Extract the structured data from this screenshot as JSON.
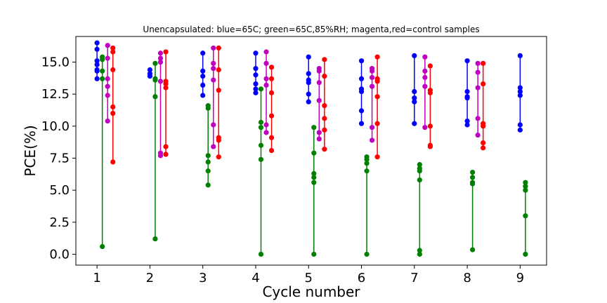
{
  "chart_data": {
    "type": "scatter",
    "title": "Unencapsulated: blue=65C; green=65C,85%RH; magenta,red=control samples",
    "xlabel": "Cycle number",
    "ylabel": "PCE(%)",
    "xlim": [
      0.6,
      9.5
    ],
    "ylim": [
      -0.85,
      17.0
    ],
    "x_ticks": [
      1,
      2,
      3,
      4,
      5,
      6,
      7,
      8,
      9
    ],
    "y_ticks": [
      0.0,
      2.5,
      5.0,
      7.5,
      10.0,
      12.5,
      15.0
    ],
    "y_tick_labels": [
      "0.0",
      "2.5",
      "5.0",
      "7.5",
      "10.0",
      "12.5",
      "15.0"
    ],
    "grid": false,
    "series": [
      {
        "color": "#0000ff",
        "offset": 0.0,
        "cycles": [
          {
            "x": 1,
            "values": [
              16.5,
              16.0,
              15.1,
              14.8,
              14.4,
              14.3,
              13.7
            ]
          },
          {
            "x": 2,
            "values": [
              14.4,
              14.1,
              13.9
            ]
          },
          {
            "x": 3,
            "values": [
              15.7,
              14.3,
              13.9,
              13.2,
              12.4
            ]
          },
          {
            "x": 4,
            "values": [
              15.7,
              14.5,
              14.0,
              13.3,
              12.9,
              12.6
            ]
          },
          {
            "x": 5,
            "values": [
              15.4,
              14.1,
              13.6,
              13.4,
              12.5,
              11.9
            ]
          },
          {
            "x": 6,
            "values": [
              15.1,
              13.7,
              12.9,
              12.7,
              11.2,
              10.2
            ]
          },
          {
            "x": 7,
            "values": [
              15.5,
              12.7,
              12.2,
              11.9,
              10.2
            ]
          },
          {
            "x": 8,
            "values": [
              15.1,
              12.7,
              12.3,
              12.2,
              10.4,
              10.1
            ]
          },
          {
            "x": 9,
            "values": [
              15.5,
              13.0,
              12.7,
              12.4,
              10.1,
              9.7
            ]
          }
        ]
      },
      {
        "color": "#008000",
        "offset": 0.1,
        "cycles": [
          {
            "x": 1,
            "values": [
              15.4,
              15.2,
              14.3,
              13.7,
              0.6
            ]
          },
          {
            "x": 2,
            "values": [
              14.9,
              13.7,
              13.6,
              12.3,
              1.2
            ]
          },
          {
            "x": 3,
            "values": [
              11.6,
              11.4,
              7.7,
              7.2,
              6.5,
              5.4
            ]
          },
          {
            "x": 4,
            "values": [
              12.9,
              10.3,
              9.9,
              8.5,
              7.4,
              0.0
            ]
          },
          {
            "x": 5,
            "values": [
              9.9,
              7.9,
              6.3,
              6.0,
              5.6,
              0.0
            ]
          },
          {
            "x": 6,
            "values": [
              7.6,
              7.4,
              7.1,
              6.5,
              0.0
            ]
          },
          {
            "x": 7,
            "values": [
              7.0,
              6.7,
              6.5,
              5.8,
              0.3,
              0.0
            ]
          },
          {
            "x": 8,
            "values": [
              6.4,
              6.0,
              5.6,
              5.5,
              0.35
            ]
          },
          {
            "x": 9,
            "values": [
              5.6,
              5.3,
              5.0,
              3.0,
              0.0
            ]
          }
        ]
      },
      {
        "color": "#bf00bf",
        "offset": 0.2,
        "cycles": [
          {
            "x": 1,
            "values": [
              16.3,
              15.3,
              13.7,
              13.1,
              12.4,
              10.4
            ]
          },
          {
            "x": 2,
            "values": [
              15.7,
              15.3,
              15.0,
              13.5,
              7.9,
              7.7
            ]
          },
          {
            "x": 3,
            "values": [
              16.1,
              14.9,
              14.5,
              13.6,
              10.1,
              8.4
            ]
          },
          {
            "x": 4,
            "values": [
              15.8,
              14.9,
              13.7,
              13.2,
              10.1,
              9.5
            ]
          },
          {
            "x": 5,
            "values": [
              14.5,
              14.3,
              13.4,
              12.0,
              9.5,
              9.0
            ]
          },
          {
            "x": 6,
            "values": [
              14.5,
              14.3,
              13.8,
              13.1,
              9.9,
              8.9
            ]
          },
          {
            "x": 7,
            "values": [
              15.4,
              14.3,
              13.8,
              13.1,
              9.9
            ]
          },
          {
            "x": 8,
            "values": [
              14.9,
              14.2,
              13.0,
              10.6,
              9.3
            ]
          },
          {
            "x": 9,
            "values": []
          }
        ]
      },
      {
        "color": "#ff0000",
        "offset": 0.3,
        "cycles": [
          {
            "x": 1,
            "values": [
              16.1,
              15.8,
              14.4,
              11.5,
              11.0,
              7.2
            ]
          },
          {
            "x": 2,
            "values": [
              15.8,
              13.5,
              13.3,
              13.0,
              8.4,
              7.8
            ]
          },
          {
            "x": 3,
            "values": [
              16.1,
              14.4,
              12.8,
              9.1,
              8.9,
              7.6
            ]
          },
          {
            "x": 4,
            "values": [
              14.6,
              13.7,
              12.6,
              10.8,
              9.1,
              8.1
            ]
          },
          {
            "x": 5,
            "values": [
              15.2,
              13.9,
              11.6,
              10.6,
              9.7,
              8.2
            ]
          },
          {
            "x": 6,
            "values": [
              15.4,
              13.7,
              13.5,
              12.3,
              10.2,
              7.6
            ]
          },
          {
            "x": 7,
            "values": [
              14.7,
              12.8,
              12.6,
              10.0,
              8.5,
              8.4
            ]
          },
          {
            "x": 8,
            "values": [
              14.9,
              13.3,
              10.2,
              10.0,
              8.7,
              8.3
            ]
          },
          {
            "x": 9,
            "values": []
          }
        ]
      }
    ]
  }
}
